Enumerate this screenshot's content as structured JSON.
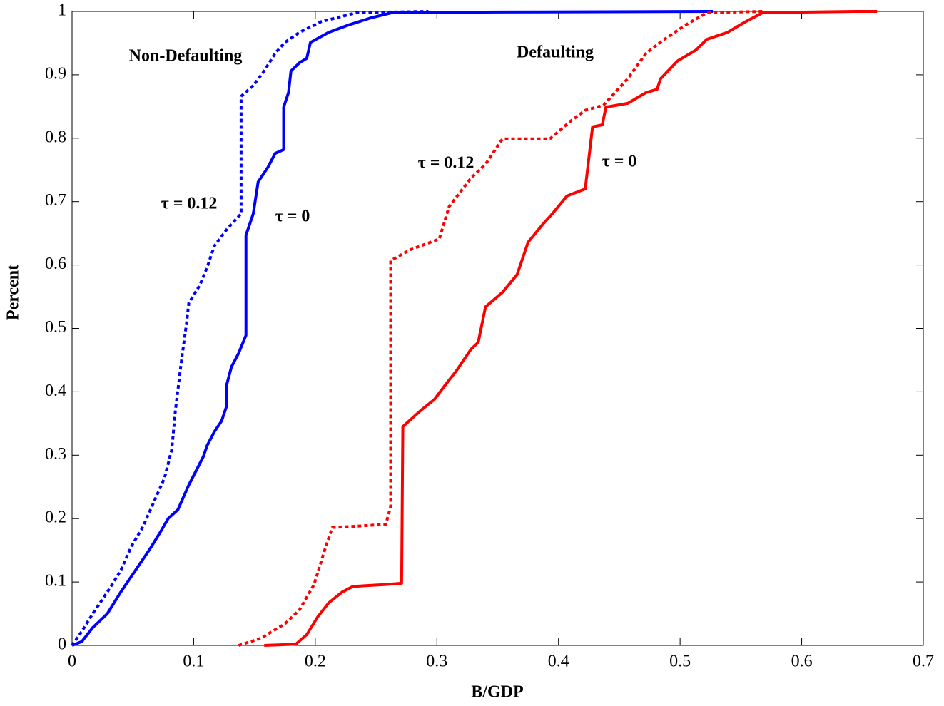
{
  "chart_data": {
    "type": "line",
    "xlabel": "B/GDP",
    "ylabel": "Percent",
    "xlim": [
      0,
      0.7
    ],
    "ylim": [
      0,
      1
    ],
    "xticks": [
      0,
      0.1,
      0.2,
      0.3,
      0.4,
      0.5,
      0.6,
      0.7
    ],
    "yticks": [
      0,
      0.1,
      0.2,
      0.3,
      0.4,
      0.5,
      0.6,
      0.7,
      0.8,
      0.9,
      1
    ],
    "annotations": [
      {
        "text": "Non-Defaulting",
        "color": "#0000ff"
      },
      {
        "text": "Defaulting",
        "color": "#ff0000"
      },
      {
        "text": "τ = 0.12",
        "color": "#0000ff"
      },
      {
        "text": "τ = 0",
        "color": "#0000ff"
      },
      {
        "text": "τ = 0.12",
        "color": "#ff0000"
      },
      {
        "text": "τ = 0",
        "color": "#ff0000"
      }
    ],
    "series": [
      {
        "color": "#0000ff",
        "style": "solid",
        "x": [
          0,
          0.008,
          0.017,
          0.029,
          0.04,
          0.052,
          0.064,
          0.073,
          0.079,
          0.087,
          0.096,
          0.108,
          0.111,
          0.117,
          0.123,
          0.127,
          0.127,
          0.131,
          0.137,
          0.143,
          0.143,
          0.149,
          0.153,
          0.161,
          0.167,
          0.174,
          0.174,
          0.178,
          0.18,
          0.187,
          0.193,
          0.196,
          0.211,
          0.228,
          0.246,
          0.263,
          0.351,
          0.527
        ],
        "values": [
          0,
          0.006,
          0.028,
          0.05,
          0.084,
          0.118,
          0.152,
          0.18,
          0.2,
          0.214,
          0.253,
          0.298,
          0.315,
          0.337,
          0.354,
          0.377,
          0.41,
          0.439,
          0.461,
          0.489,
          0.647,
          0.681,
          0.731,
          0.754,
          0.776,
          0.782,
          0.849,
          0.872,
          0.906,
          0.919,
          0.926,
          0.951,
          0.967,
          0.979,
          0.99,
          0.998,
          0.999,
          1.0
        ]
      },
      {
        "color": "#0000ff",
        "style": "dotted",
        "x": [
          0,
          0.008,
          0.017,
          0.029,
          0.04,
          0.049,
          0.058,
          0.067,
          0.076,
          0.082,
          0.085,
          0.09,
          0.094,
          0.096,
          0.105,
          0.111,
          0.117,
          0.128,
          0.139,
          0.139,
          0.149,
          0.158,
          0.167,
          0.175,
          0.187,
          0.205,
          0.234,
          0.293
        ],
        "values": [
          0,
          0.022,
          0.05,
          0.084,
          0.118,
          0.157,
          0.186,
          0.225,
          0.264,
          0.309,
          0.371,
          0.45,
          0.506,
          0.54,
          0.568,
          0.596,
          0.63,
          0.658,
          0.681,
          0.866,
          0.883,
          0.906,
          0.934,
          0.951,
          0.967,
          0.984,
          0.998,
          1.0
        ]
      },
      {
        "color": "#ff0000",
        "style": "solid",
        "x": [
          0.158,
          0.184,
          0.193,
          0.202,
          0.211,
          0.222,
          0.231,
          0.258,
          0.271,
          0.272,
          0.287,
          0.298,
          0.307,
          0.316,
          0.328,
          0.334,
          0.34,
          0.354,
          0.366,
          0.375,
          0.387,
          0.395,
          0.407,
          0.422,
          0.428,
          0.436,
          0.439,
          0.457,
          0.472,
          0.481,
          0.484,
          0.498,
          0.513,
          0.522,
          0.539,
          0.554,
          0.568,
          0.645,
          0.662
        ],
        "values": [
          0,
          0.002,
          0.017,
          0.045,
          0.067,
          0.084,
          0.093,
          0.096,
          0.098,
          0.345,
          0.371,
          0.388,
          0.411,
          0.433,
          0.467,
          0.478,
          0.534,
          0.557,
          0.585,
          0.636,
          0.664,
          0.681,
          0.709,
          0.72,
          0.818,
          0.821,
          0.849,
          0.855,
          0.872,
          0.877,
          0.894,
          0.922,
          0.939,
          0.956,
          0.967,
          0.984,
          0.998,
          1.0,
          1.0
        ]
      },
      {
        "color": "#ff0000",
        "style": "dotted",
        "x": [
          0.137,
          0.155,
          0.175,
          0.187,
          0.199,
          0.208,
          0.214,
          0.234,
          0.258,
          0.262,
          0.262,
          0.278,
          0.302,
          0.31,
          0.328,
          0.34,
          0.354,
          0.393,
          0.41,
          0.422,
          0.437,
          0.457,
          0.472,
          0.487,
          0.504,
          0.522,
          0.568
        ],
        "values": [
          0,
          0.011,
          0.034,
          0.056,
          0.096,
          0.152,
          0.186,
          0.188,
          0.191,
          0.219,
          0.607,
          0.624,
          0.641,
          0.692,
          0.737,
          0.759,
          0.799,
          0.799,
          0.827,
          0.844,
          0.852,
          0.894,
          0.934,
          0.956,
          0.978,
          0.998,
          1.0
        ]
      }
    ]
  }
}
